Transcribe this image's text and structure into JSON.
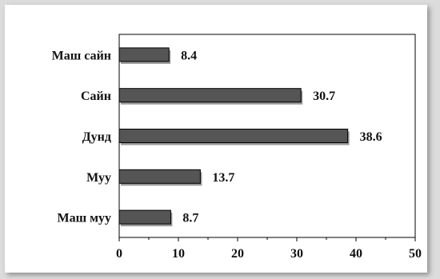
{
  "chart_data": {
    "type": "bar",
    "orientation": "horizontal",
    "categories": [
      "Маш сайн",
      "Сайн",
      "Дунд",
      "Муу",
      "Маш муу"
    ],
    "values": [
      8.4,
      30.7,
      38.6,
      13.7,
      8.7
    ],
    "value_labels": [
      "8.4",
      "30.7",
      "38.6",
      "13.7",
      "8.7"
    ],
    "xlim": [
      0,
      50
    ],
    "x_ticks": [
      0,
      10,
      20,
      30,
      40,
      50
    ],
    "title": "",
    "xlabel": "",
    "ylabel": "",
    "grid": false,
    "bar_color": "#555555",
    "bar_stroke": "#000000"
  }
}
